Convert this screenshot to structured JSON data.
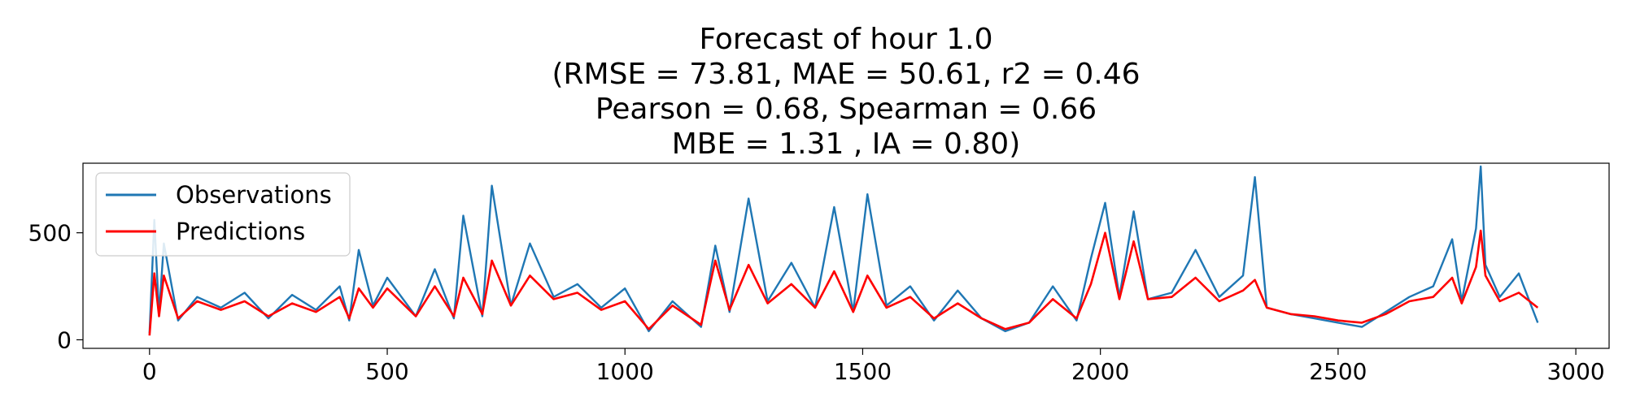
{
  "chart_data": {
    "type": "line",
    "title_lines": [
      "Forecast of hour 1.0",
      "(RMSE = 73.81, MAE = 50.61, r2 = 0.46",
      "Pearson = 0.68, Spearman = 0.66",
      "MBE = 1.31 , IA = 0.80)"
    ],
    "xlabel": "",
    "ylabel": "",
    "xlim": [
      -140,
      3070
    ],
    "ylim": [
      -40,
      825
    ],
    "x_ticks": [
      0,
      500,
      1000,
      1500,
      2000,
      2500,
      3000
    ],
    "y_ticks": [
      0,
      500
    ],
    "legend": {
      "placement": "upper-left"
    },
    "grid": false,
    "series": [
      {
        "name": "Observations",
        "color": "#1f77b4",
        "x": [
          0,
          10,
          20,
          30,
          60,
          100,
          150,
          200,
          250,
          300,
          350,
          400,
          420,
          440,
          470,
          500,
          560,
          600,
          640,
          660,
          700,
          720,
          760,
          800,
          850,
          900,
          950,
          1000,
          1050,
          1100,
          1160,
          1190,
          1220,
          1260,
          1300,
          1350,
          1400,
          1440,
          1480,
          1510,
          1550,
          1600,
          1650,
          1700,
          1750,
          1800,
          1850,
          1900,
          1950,
          1980,
          2010,
          2040,
          2070,
          2100,
          2150,
          2200,
          2250,
          2300,
          2325,
          2350,
          2400,
          2450,
          2500,
          2550,
          2600,
          2650,
          2700,
          2740,
          2760,
          2790,
          2800,
          2810,
          2840,
          2880,
          2920
        ],
        "y": [
          30,
          560,
          120,
          450,
          90,
          200,
          150,
          220,
          100,
          210,
          140,
          250,
          90,
          420,
          160,
          290,
          110,
          330,
          100,
          580,
          110,
          720,
          160,
          450,
          200,
          260,
          150,
          240,
          40,
          180,
          60,
          440,
          130,
          660,
          180,
          360,
          150,
          620,
          130,
          680,
          160,
          250,
          90,
          230,
          100,
          40,
          80,
          250,
          90,
          380,
          640,
          200,
          600,
          190,
          220,
          420,
          200,
          300,
          760,
          150,
          120,
          100,
          80,
          60,
          130,
          200,
          250,
          470,
          180,
          520,
          810,
          350,
          200,
          310,
          80
        ]
      },
      {
        "name": "Predictions",
        "color": "#ff0000",
        "x": [
          0,
          10,
          20,
          30,
          60,
          100,
          150,
          200,
          250,
          300,
          350,
          400,
          420,
          440,
          470,
          500,
          560,
          600,
          640,
          660,
          700,
          720,
          760,
          800,
          850,
          900,
          950,
          1000,
          1050,
          1100,
          1160,
          1190,
          1220,
          1260,
          1300,
          1350,
          1400,
          1440,
          1480,
          1510,
          1550,
          1600,
          1650,
          1700,
          1750,
          1800,
          1850,
          1900,
          1950,
          1980,
          2010,
          2040,
          2070,
          2100,
          2150,
          2200,
          2250,
          2300,
          2325,
          2350,
          2400,
          2450,
          2500,
          2550,
          2600,
          2650,
          2700,
          2740,
          2760,
          2790,
          2800,
          2810,
          2840,
          2880,
          2920
        ],
        "y": [
          20,
          310,
          110,
          300,
          100,
          180,
          140,
          180,
          110,
          170,
          130,
          200,
          100,
          240,
          150,
          240,
          110,
          250,
          110,
          290,
          120,
          370,
          160,
          300,
          190,
          220,
          140,
          180,
          50,
          160,
          70,
          370,
          140,
          350,
          170,
          260,
          150,
          320,
          130,
          300,
          150,
          200,
          100,
          170,
          100,
          50,
          80,
          190,
          100,
          260,
          500,
          190,
          460,
          190,
          200,
          290,
          180,
          230,
          280,
          150,
          120,
          110,
          90,
          80,
          120,
          180,
          200,
          290,
          170,
          340,
          510,
          300,
          180,
          220,
          150
        ]
      }
    ]
  }
}
